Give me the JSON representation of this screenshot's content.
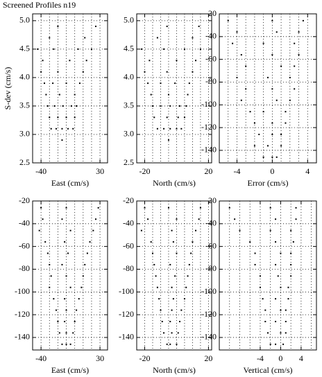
{
  "title": "Screened Profiles n19",
  "chart_data": [
    {
      "type": "scatter",
      "xlabel": "East (cm/s)",
      "ylabel": "S-dev (cm/s)",
      "xlim": [
        -50,
        39
      ],
      "ylim": [
        2.5,
        5.12
      ],
      "xticks": [
        -40,
        30
      ],
      "xminor": [
        -40,
        -30,
        -20,
        -10,
        0,
        10,
        20,
        30
      ],
      "yticks": [
        2.5,
        {
          "value": 3,
          "label": "3.0"
        },
        3.5,
        {
          "value": 4,
          "label": "4.0"
        },
        4.5,
        {
          "value": 5,
          "label": "5.0"
        }
      ],
      "grid": true,
      "color": "#000000",
      "x": [
        -15,
        -28,
        -22,
        -15,
        -8,
        -2,
        -30,
        -20,
        -10,
        0,
        -32,
        -24,
        -14,
        -4,
        2,
        -34,
        -18,
        0,
        -36,
        -26,
        -10,
        6,
        -40,
        -20,
        10,
        -38,
        -6,
        14,
        -44,
        -25,
        4,
        20,
        -30,
        12,
        -20,
        25
      ],
      "y": [
        2.9,
        3.1,
        3.1,
        3.1,
        3.1,
        3.1,
        3.3,
        3.3,
        3.3,
        3.3,
        3.5,
        3.5,
        3.5,
        3.5,
        3.5,
        3.7,
        3.7,
        3.7,
        3.9,
        3.9,
        3.9,
        3.9,
        4.1,
        4.1,
        4.1,
        4.3,
        4.3,
        4.3,
        4.5,
        4.5,
        4.5,
        4.5,
        4.7,
        4.7,
        4.9,
        4.9
      ]
    },
    {
      "type": "scatter",
      "xlabel": "North (cm/s)",
      "xlim": [
        -25,
        22
      ],
      "ylim": [
        2.5,
        5.12
      ],
      "xticks": [
        -20,
        20
      ],
      "xminor": [
        -20,
        -15,
        -10,
        -5,
        0,
        5,
        10,
        15,
        20
      ],
      "yticks": [
        2.5,
        {
          "value": 3,
          "label": "3.0"
        },
        3.5,
        {
          "value": 4,
          "label": "4.0"
        },
        4.5,
        {
          "value": 5,
          "label": "5.0"
        }
      ],
      "grid": true,
      "color": "#000000",
      "x": [
        -5,
        -12,
        -8,
        -4,
        0,
        3,
        -14,
        -6,
        1,
        5,
        -15,
        -10,
        -4,
        2,
        6,
        -16,
        -5,
        7,
        -18,
        -10,
        -1,
        8,
        -20,
        -6,
        10,
        -17,
        0,
        12,
        -22,
        -8,
        5,
        15,
        -12,
        10,
        -6,
        14
      ],
      "y": [
        2.9,
        3.1,
        3.1,
        3.1,
        3.1,
        3.1,
        3.3,
        3.3,
        3.3,
        3.3,
        3.5,
        3.5,
        3.5,
        3.5,
        3.5,
        3.7,
        3.7,
        3.7,
        3.9,
        3.9,
        3.9,
        3.9,
        4.1,
        4.1,
        4.1,
        4.3,
        4.3,
        4.3,
        4.5,
        4.5,
        4.5,
        4.5,
        4.7,
        4.7,
        4.9,
        4.9
      ]
    },
    {
      "type": "scatter",
      "xlabel": "Error (cm/s)",
      "xlim": [
        -6,
        5
      ],
      "ylim": [
        -151,
        -20
      ],
      "xticks": [
        -4,
        0,
        4
      ],
      "xminor": [
        -5,
        -4,
        -3,
        -2,
        -1,
        0,
        1,
        2,
        3,
        4
      ],
      "yticks": [
        -140,
        -120,
        -100,
        -80,
        -60,
        -40,
        -20
      ],
      "grid": true,
      "color": "#000000",
      "x": [
        -5,
        0,
        3.5,
        -4,
        0.5,
        3,
        -4.5,
        -1,
        2.5,
        -3.5,
        0,
        3,
        -3,
        1,
        2.5,
        -4,
        -0.5,
        2,
        -3,
        0,
        2.5,
        -3.5,
        0.5,
        2,
        -2.5,
        -1,
        1.5,
        -2,
        0,
        1.5,
        -1.5,
        0,
        1,
        -2,
        -0.5,
        1,
        -1,
        0,
        0.5
      ],
      "y": [
        -26,
        -26,
        -26,
        -36,
        -36,
        -36,
        -46,
        -46,
        -46,
        -56,
        -56,
        -56,
        -66,
        -66,
        -66,
        -76,
        -76,
        -76,
        -86,
        -86,
        -86,
        -96,
        -96,
        -96,
        -106,
        -106,
        -106,
        -116,
        -116,
        -116,
        -126,
        -126,
        -126,
        -136,
        -136,
        -136,
        -146,
        -146,
        -146
      ]
    },
    {
      "type": "scatter",
      "xlabel": "East (cm/s)",
      "xlim": [
        -50,
        39
      ],
      "ylim": [
        -151,
        -20
      ],
      "xticks": [
        -40,
        30
      ],
      "xminor": [
        -40,
        -30,
        -20,
        -10,
        0,
        10,
        20,
        30
      ],
      "yticks": [
        -140,
        -120,
        -100,
        -80,
        -60,
        -40,
        -20
      ],
      "grid": true,
      "color": "#000000",
      "x": [
        -40,
        -10,
        28,
        -38,
        -15,
        25,
        -42,
        -5,
        22,
        -35,
        -12,
        18,
        -32,
        -8,
        15,
        -30,
        -15,
        12,
        -28,
        -10,
        10,
        -30,
        -5,
        8,
        -25,
        -12,
        5,
        -22,
        -10,
        2,
        -20,
        -12,
        0,
        -18,
        -10,
        -2,
        -15,
        -10,
        -5
      ],
      "y": [
        -26,
        -26,
        -26,
        -36,
        -36,
        -36,
        -46,
        -46,
        -46,
        -56,
        -56,
        -56,
        -66,
        -66,
        -66,
        -76,
        -76,
        -76,
        -86,
        -86,
        -86,
        -96,
        -96,
        -96,
        -106,
        -106,
        -106,
        -116,
        -116,
        -116,
        -126,
        -126,
        -126,
        -136,
        -136,
        -136,
        -146,
        -146,
        -146
      ]
    },
    {
      "type": "scatter",
      "xlabel": "North (cm/s)",
      "xlim": [
        -25,
        22
      ],
      "ylim": [
        -151,
        -20
      ],
      "xticks": [
        -20,
        20
      ],
      "xminor": [
        -20,
        -15,
        -10,
        -5,
        0,
        5,
        10,
        15,
        20
      ],
      "yticks": [
        -140,
        -120,
        -100,
        -80,
        -60,
        -40,
        -20
      ],
      "grid": true,
      "color": "#000000",
      "x": [
        -20,
        -5,
        15,
        -18,
        0,
        14,
        -22,
        -3,
        12,
        -16,
        -2,
        10,
        -15,
        0,
        9,
        -14,
        -4,
        8,
        -13,
        -1,
        7,
        -12,
        -3,
        6,
        -11,
        -2,
        5,
        -10,
        -3,
        3,
        -9,
        -4,
        2,
        -8,
        -3,
        1,
        -6,
        -4,
        0
      ],
      "y": [
        -26,
        -26,
        -26,
        -36,
        -36,
        -36,
        -46,
        -46,
        -46,
        -56,
        -56,
        -56,
        -66,
        -66,
        -66,
        -76,
        -76,
        -76,
        -86,
        -86,
        -86,
        -96,
        -96,
        -96,
        -106,
        -106,
        -106,
        -116,
        -116,
        -116,
        -126,
        -126,
        -126,
        -136,
        -136,
        -136,
        -146,
        -146,
        -146
      ]
    },
    {
      "type": "scatter",
      "xlabel": "Vertical (cm/s)",
      "xlim": [
        -12,
        7
      ],
      "ylim": [
        -151,
        -20
      ],
      "xticks": [
        -4,
        0,
        4
      ],
      "xminor": [
        -10,
        -8,
        -6,
        -4,
        -2,
        0,
        2,
        4,
        6
      ],
      "yticks": [
        -140,
        -120,
        -100,
        -80,
        -60,
        -40,
        -20
      ],
      "grid": true,
      "color": "#000000",
      "x": [
        -10,
        -2,
        3,
        -9,
        -1,
        3,
        -8,
        -2,
        2,
        -6,
        -1,
        2.5,
        -5,
        0,
        2,
        -5,
        -1,
        2,
        -4,
        -0.5,
        2,
        -4,
        0,
        1.5,
        -3.5,
        -1,
        1.5,
        -3,
        0,
        1,
        -3,
        -1,
        1,
        -2.5,
        0,
        1,
        -2,
        -1,
        0.5
      ],
      "y": [
        -26,
        -26,
        -26,
        -36,
        -36,
        -36,
        -46,
        -46,
        -46,
        -56,
        -56,
        -56,
        -66,
        -66,
        -66,
        -76,
        -76,
        -76,
        -86,
        -86,
        -86,
        -96,
        -96,
        -96,
        -106,
        -106,
        -106,
        -116,
        -116,
        -116,
        -126,
        -126,
        -126,
        -136,
        -136,
        -136,
        -146,
        -146,
        -146
      ]
    }
  ]
}
